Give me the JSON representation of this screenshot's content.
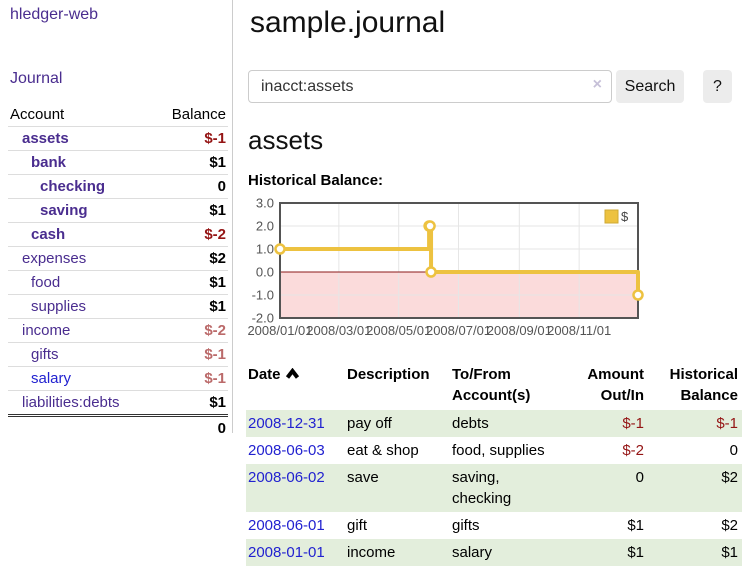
{
  "sidebar": {
    "brand": "hledger-web",
    "nav_journal": "Journal",
    "accounts_table": {
      "headers": {
        "account": "Account",
        "balance": "Balance"
      },
      "rows": [
        {
          "account": "assets",
          "depth": 0,
          "bold": true,
          "link_color": "purple",
          "balance": "$-1",
          "balance_style": "neg-strong"
        },
        {
          "account": "bank",
          "depth": 1,
          "bold": true,
          "link_color": "purple",
          "balance": "$1",
          "balance_style": "pos"
        },
        {
          "account": "checking",
          "depth": 2,
          "bold": true,
          "link_color": "purple",
          "balance": "0",
          "balance_style": "pos"
        },
        {
          "account": "saving",
          "depth": 2,
          "bold": true,
          "link_color": "purple",
          "balance": "$1",
          "balance_style": "pos"
        },
        {
          "account": "cash",
          "depth": 1,
          "bold": true,
          "link_color": "purple",
          "balance": "$-2",
          "balance_style": "neg-strong"
        },
        {
          "account": "expenses",
          "depth": 0,
          "bold": false,
          "link_color": "purple",
          "balance": "$2",
          "balance_style": "pos"
        },
        {
          "account": "food",
          "depth": 1,
          "bold": false,
          "link_color": "purple",
          "balance": "$1",
          "balance_style": "pos"
        },
        {
          "account": "supplies",
          "depth": 1,
          "bold": false,
          "link_color": "purple",
          "balance": "$1",
          "balance_style": "pos"
        },
        {
          "account": "income",
          "depth": 0,
          "bold": false,
          "link_color": "purple",
          "balance": "$-2",
          "balance_style": "neg-soft"
        },
        {
          "account": "gifts",
          "depth": 1,
          "bold": false,
          "link_color": "purple",
          "balance": "$-1",
          "balance_style": "neg-soft"
        },
        {
          "account": "salary",
          "depth": 1,
          "bold": false,
          "link_color": "blue",
          "balance": "$-1",
          "balance_style": "neg-soft"
        },
        {
          "account": "liabilities:debts",
          "depth": 0,
          "bold": false,
          "link_color": "purple",
          "balance": "$1",
          "balance_style": "pos"
        }
      ],
      "total": "0"
    }
  },
  "header": {
    "title": "sample.journal"
  },
  "search": {
    "value": "inacct:assets",
    "clear_icon": "×",
    "search_label": "Search",
    "help_label": "?"
  },
  "register": {
    "heading": "assets",
    "chart_label": "Historical Balance:",
    "table": {
      "headers": {
        "date": "Date",
        "description": "Description",
        "accounts": "To/From Account(s)",
        "amount": "Amount Out/In",
        "balance": "Historical Balance"
      },
      "sort": {
        "column": "date",
        "direction": "ascending",
        "icon": "caret-up"
      },
      "rows": [
        {
          "date": "2008-12-31",
          "description": "pay off",
          "accounts": "debts",
          "amount": "$-1",
          "amount_neg": true,
          "balance": "$-1",
          "balance_neg": true
        },
        {
          "date": "2008-06-03",
          "description": "eat & shop",
          "accounts": "food, supplies",
          "amount": "$-2",
          "amount_neg": true,
          "balance": "0",
          "balance_neg": false
        },
        {
          "date": "2008-06-02",
          "description": "save",
          "accounts": "saving, checking",
          "amount": "0",
          "amount_neg": false,
          "balance": "$2",
          "balance_neg": false
        },
        {
          "date": "2008-06-01",
          "description": "gift",
          "accounts": "gifts",
          "amount": "$1",
          "amount_neg": false,
          "balance": "$2",
          "balance_neg": false
        },
        {
          "date": "2008-01-01",
          "description": "income",
          "accounts": "salary",
          "amount": "$1",
          "amount_neg": false,
          "balance": "$1",
          "balance_neg": false
        }
      ]
    }
  },
  "chart_data": {
    "type": "line",
    "step": true,
    "title": "Historical Balance",
    "series": [
      {
        "name": "$",
        "color": "#edc240",
        "points": [
          {
            "date": "2008/01/01",
            "value": 1
          },
          {
            "date": "2008/06/01",
            "value": 2
          },
          {
            "date": "2008/06/02",
            "value": 2
          },
          {
            "date": "2008/06/03",
            "value": 0
          },
          {
            "date": "2008/12/31",
            "value": -1
          }
        ]
      }
    ],
    "x_range": [
      "2008/01/01",
      "2008/12/31"
    ],
    "x_tick_labels": [
      "2008/01/01",
      "2008/03/01",
      "2008/05/01",
      "2008/07/01",
      "2008/09/01",
      "2008/11/01"
    ],
    "ylim": [
      -2,
      3
    ],
    "y_ticks": [
      3.0,
      2.0,
      1.0,
      0.0,
      -1.0,
      -2.0
    ],
    "y_tick_labels": [
      "3.0",
      "2.0",
      "1.0",
      "0.0",
      "-1.0",
      "-2.0"
    ],
    "grid": true,
    "legend_position": "top-right",
    "colors": {
      "negative_fill": "#fbdbdb",
      "zero_line": "#8b1a1a",
      "grid_line": "#e6e6e6",
      "plot_border": "#545454",
      "tick_label": "#545454"
    }
  }
}
